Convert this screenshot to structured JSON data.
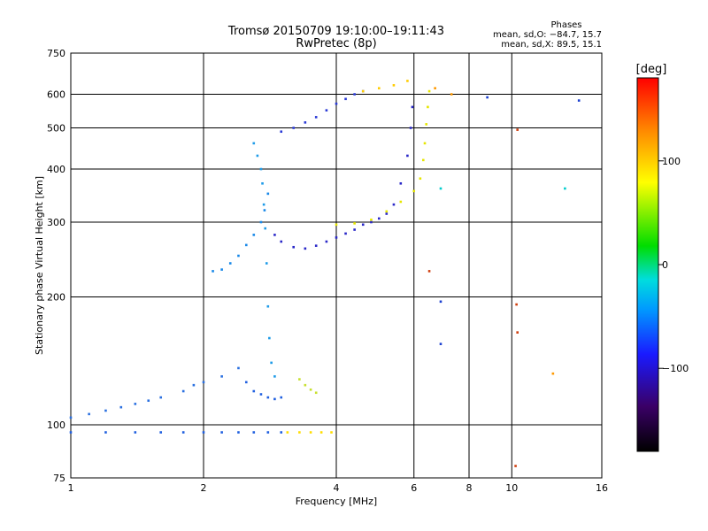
{
  "chart_data": {
    "type": "scatter",
    "title": "Tromsø 20150709 19:10:00–19:11:43",
    "subtitle": "RwPretec (8p)",
    "xlabel": "Frequency [MHz]",
    "ylabel": "Stationary phase Virtual Height [km]",
    "x_scale": "log2",
    "y_scale": "log",
    "xlim": [
      1,
      16
    ],
    "ylim": [
      75,
      750
    ],
    "x_ticks": [
      1,
      2,
      4,
      6,
      8,
      10,
      16
    ],
    "x_tick_labels": [
      "1",
      "2",
      "4",
      "6",
      "8",
      "10",
      "16"
    ],
    "y_ticks": [
      75,
      100,
      200,
      300,
      400,
      500,
      600,
      750
    ],
    "y_tick_labels": [
      "75",
      "100",
      "200",
      "300",
      "400",
      "500",
      "600",
      "750"
    ],
    "grid": true,
    "phase_box": {
      "title": "Phases",
      "line_o": "mean, sd,O: −84.7, 15.7",
      "line_x": "mean, sd,X: 89.5, 15.1"
    },
    "colorbar": {
      "label": "[deg]",
      "range": [
        -180,
        180
      ],
      "ticks": [
        100,
        0,
        -100
      ],
      "tick_labels": [
        "100",
        "0",
        "−100"
      ],
      "colormap": [
        "#000000",
        "#3a0066",
        "#1a1aff",
        "#0099ff",
        "#00dddd",
        "#00dd00",
        "#ffff00",
        "#ff8800",
        "#ff0000"
      ]
    },
    "series": [
      {
        "color": "#1f5fdf",
        "points": [
          [
            1.0,
            96
          ],
          [
            1.2,
            96
          ],
          [
            1.4,
            96
          ],
          [
            1.6,
            96
          ],
          [
            1.8,
            96
          ],
          [
            2.0,
            96
          ],
          [
            2.2,
            96
          ],
          [
            2.4,
            96
          ],
          [
            2.6,
            96
          ],
          [
            2.8,
            96
          ],
          [
            3.0,
            96
          ]
        ]
      },
      {
        "color": "#ffdd00",
        "points": [
          [
            3.1,
            96
          ],
          [
            3.3,
            96
          ],
          [
            3.5,
            96
          ],
          [
            3.7,
            96
          ],
          [
            3.9,
            96
          ]
        ]
      },
      {
        "color": "#2a70e0",
        "points": [
          [
            1.0,
            104
          ],
          [
            1.1,
            106
          ],
          [
            1.2,
            108
          ],
          [
            1.3,
            110
          ],
          [
            1.4,
            112
          ],
          [
            1.5,
            114
          ],
          [
            1.6,
            116
          ],
          [
            1.8,
            120
          ],
          [
            1.9,
            124
          ],
          [
            2.0,
            126
          ],
          [
            2.2,
            130
          ],
          [
            2.4,
            136
          ]
        ]
      },
      {
        "color": "#1888e8",
        "points": [
          [
            2.1,
            230
          ],
          [
            2.2,
            232
          ],
          [
            2.3,
            240
          ],
          [
            2.4,
            250
          ],
          [
            2.5,
            265
          ],
          [
            2.6,
            280
          ],
          [
            2.7,
            300
          ],
          [
            2.75,
            320
          ],
          [
            2.8,
            350
          ]
        ]
      },
      {
        "color": "#1e9be8",
        "points": [
          [
            2.6,
            460
          ],
          [
            2.65,
            430
          ],
          [
            2.7,
            400
          ],
          [
            2.72,
            370
          ],
          [
            2.74,
            330
          ],
          [
            2.76,
            290
          ],
          [
            2.78,
            240
          ],
          [
            2.8,
            190
          ],
          [
            2.82,
            160
          ],
          [
            2.85,
            140
          ],
          [
            2.9,
            130
          ]
        ]
      },
      {
        "color": "#2060e0",
        "points": [
          [
            2.5,
            126
          ],
          [
            2.6,
            120
          ],
          [
            2.7,
            118
          ],
          [
            2.8,
            116
          ],
          [
            2.9,
            115
          ],
          [
            3.0,
            116
          ]
        ]
      },
      {
        "color": "#2a28c8",
        "points": [
          [
            2.9,
            280
          ],
          [
            3.0,
            270
          ],
          [
            3.2,
            262
          ],
          [
            3.4,
            260
          ],
          [
            3.6,
            264
          ],
          [
            3.8,
            270
          ],
          [
            4.0,
            276
          ],
          [
            4.2,
            282
          ],
          [
            4.4,
            288
          ],
          [
            4.6,
            296
          ],
          [
            4.8,
            300
          ],
          [
            5.0,
            306
          ],
          [
            5.2,
            314
          ],
          [
            5.4,
            330
          ],
          [
            5.6,
            370
          ],
          [
            5.8,
            430
          ],
          [
            5.9,
            500
          ],
          [
            5.95,
            560
          ]
        ]
      },
      {
        "color": "#2a3ad6",
        "points": [
          [
            3.0,
            490
          ],
          [
            3.2,
            500
          ],
          [
            3.4,
            515
          ],
          [
            3.6,
            530
          ],
          [
            3.8,
            550
          ],
          [
            4.0,
            570
          ],
          [
            4.2,
            585
          ],
          [
            4.4,
            600
          ],
          [
            4.6,
            610
          ]
        ]
      },
      {
        "color": "#e6e600",
        "points": [
          [
            4.0,
            296
          ],
          [
            4.4,
            298
          ],
          [
            4.8,
            304
          ],
          [
            5.2,
            318
          ],
          [
            5.6,
            335
          ],
          [
            6.0,
            355
          ],
          [
            6.2,
            380
          ],
          [
            6.3,
            420
          ],
          [
            6.35,
            460
          ],
          [
            6.4,
            510
          ],
          [
            6.45,
            560
          ],
          [
            6.5,
            610
          ]
        ]
      },
      {
        "color": "#ffcc00",
        "points": [
          [
            4.6,
            610
          ],
          [
            5.0,
            620
          ],
          [
            5.4,
            630
          ],
          [
            5.8,
            645
          ]
        ]
      },
      {
        "color": "#c8e030",
        "points": [
          [
            3.3,
            128
          ],
          [
            3.4,
            124
          ],
          [
            3.5,
            121
          ],
          [
            3.6,
            119
          ]
        ]
      }
    ],
    "scattered_points": [
      {
        "color": "#d04010",
        "points": [
          [
            10.2,
            80
          ],
          [
            10.3,
            165
          ],
          [
            10.25,
            192
          ],
          [
            6.5,
            230
          ],
          [
            10.3,
            495
          ]
        ]
      },
      {
        "color": "#1a3fd0",
        "points": [
          [
            6.9,
            155
          ],
          [
            6.9,
            195
          ],
          [
            14.2,
            580
          ],
          [
            8.8,
            590
          ]
        ]
      },
      {
        "color": "#ff9900",
        "points": [
          [
            12.4,
            132
          ],
          [
            6.7,
            620
          ],
          [
            7.3,
            600
          ]
        ]
      },
      {
        "color": "#00cccc",
        "points": [
          [
            13.2,
            360
          ],
          [
            6.9,
            360
          ]
        ]
      }
    ]
  }
}
